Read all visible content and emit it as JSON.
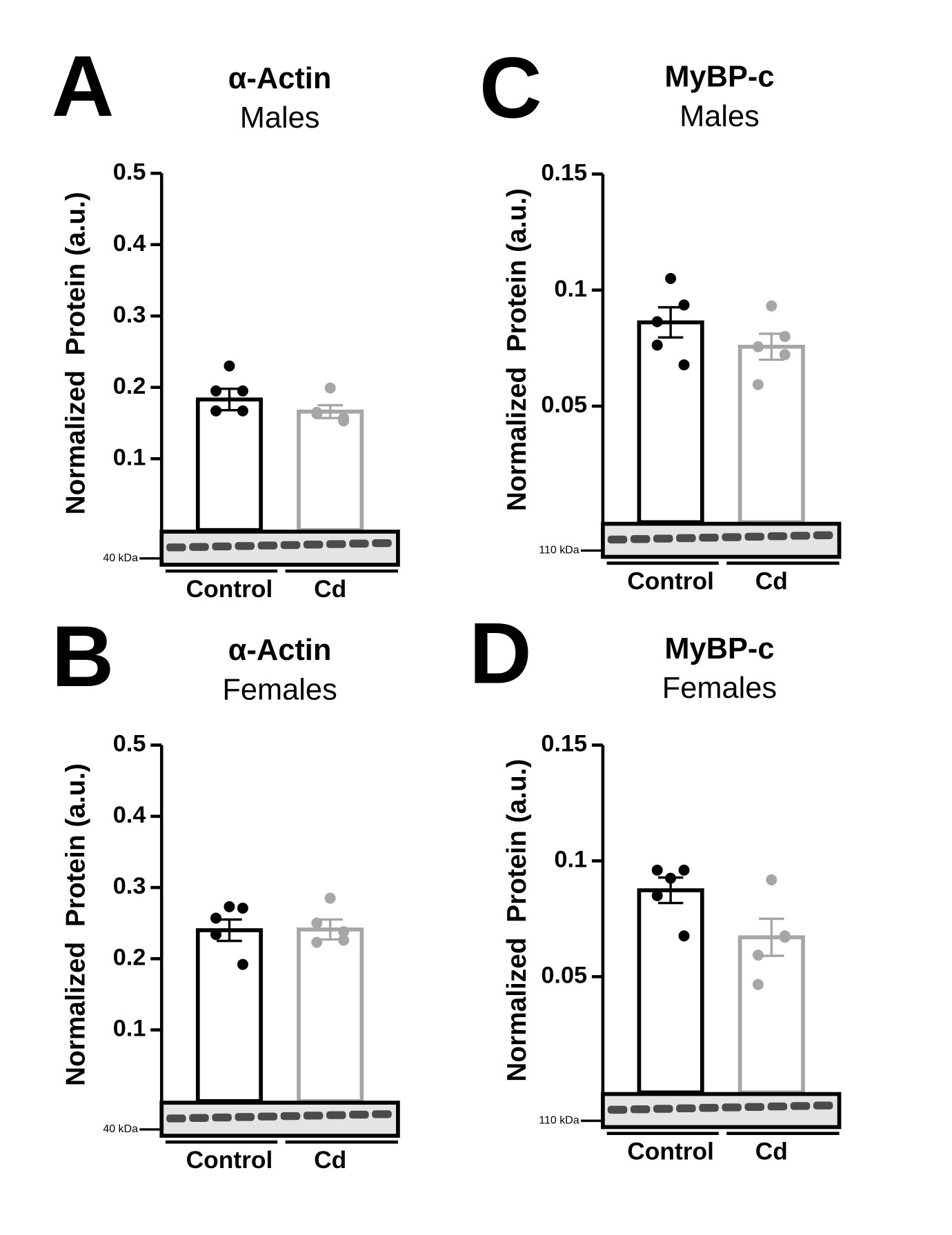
{
  "chart_data": [
    {
      "type": "bar",
      "panel": "A",
      "title": "α-Actin",
      "subtitle": "Males",
      "ylabel": "Normalized  Protein (a.u.)",
      "categories": [
        "Control",
        "Cd"
      ],
      "values": [
        0.183,
        0.166
      ],
      "errors": [
        0.015,
        0.009
      ],
      "points": [
        [
          0.23,
          0.195,
          0.195,
          0.167,
          0.167
        ],
        [
          0.199,
          0.165,
          0.153,
          0.163,
          0.157
        ]
      ],
      "colors": [
        "#000000",
        "#a6a6a8"
      ],
      "ylim": [
        0,
        0.5
      ],
      "yticks": [
        0.1,
        0.2,
        0.3,
        0.4,
        0.5
      ],
      "blot_label": "40 kDa"
    },
    {
      "type": "bar",
      "panel": "B",
      "title": "α-Actin",
      "subtitle": "Females",
      "ylabel": "Normalized  Protein (a.u.)",
      "categories": [
        "Control",
        "Cd"
      ],
      "values": [
        0.24,
        0.241
      ],
      "errors": [
        0.015,
        0.014
      ],
      "points": [
        [
          0.273,
          0.257,
          0.271,
          0.234,
          0.192
        ],
        [
          0.285,
          0.25,
          0.238,
          0.223,
          0.226
        ]
      ],
      "colors": [
        "#000000",
        "#a6a6a8"
      ],
      "ylim": [
        0,
        0.5
      ],
      "yticks": [
        0.1,
        0.2,
        0.3,
        0.4,
        0.5
      ],
      "blot_label": "40 kDa"
    },
    {
      "type": "bar",
      "panel": "C",
      "title": "MyBP-c",
      "subtitle": "Males",
      "ylabel": "Normalized  Protein (a.u.)",
      "categories": [
        "Control",
        "Cd"
      ],
      "values": [
        0.0861,
        0.0756
      ],
      "errors": [
        0.0065,
        0.0056
      ],
      "points": [
        [
          0.105,
          0.0864,
          0.0936,
          0.0763,
          0.0678
        ],
        [
          0.0932,
          0.0756,
          0.08,
          0.0593,
          0.0722
        ]
      ],
      "colors": [
        "#000000",
        "#a6a6a8"
      ],
      "ylim": [
        0,
        0.15
      ],
      "yticks": [
        0.05,
        0.1,
        0.15
      ],
      "blot_label": "110 kDa"
    },
    {
      "type": "bar",
      "panel": "D",
      "title": "MyBP-c",
      "subtitle": "Females",
      "ylabel": "Normalized  Protein (a.u.)",
      "categories": [
        "Control",
        "Cd"
      ],
      "values": [
        0.0873,
        0.067
      ],
      "errors": [
        0.0055,
        0.008
      ],
      "points": [
        [
          0.0925,
          0.096,
          0.096,
          0.085,
          0.0676
        ],
        [
          0.0918,
          0.0593,
          0.0676,
          0.0466,
          0.067
        ]
      ],
      "colors": [
        "#000000",
        "#a6a6a8"
      ],
      "ylim": [
        0,
        0.15
      ],
      "yticks": [
        0.05,
        0.1,
        0.15
      ],
      "blot_label": "110 kDa"
    }
  ]
}
